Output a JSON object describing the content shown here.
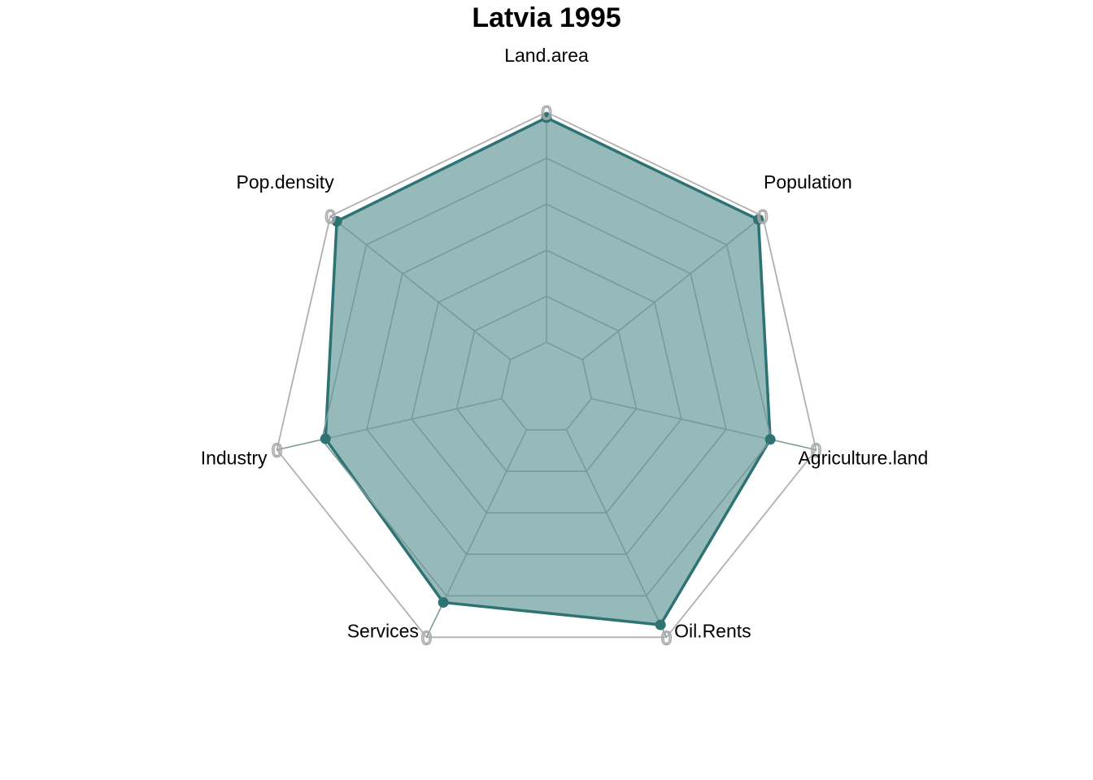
{
  "chart_data": {
    "type": "radar",
    "title": "Latvia 1995",
    "axes": [
      "Land.area",
      "Population",
      "Agriculture.land",
      "Oil.Rents",
      "Services",
      "Industry",
      "Pop.density"
    ],
    "max_labels": [
      "0",
      "0",
      "0",
      "0",
      "0",
      "0",
      "0"
    ],
    "range": [
      0,
      1
    ],
    "grid_levels": 5,
    "series": [
      {
        "values": [
          0.98,
          0.98,
          0.83,
          0.95,
          0.86,
          0.82,
          0.97
        ]
      }
    ],
    "colors": {
      "series_line": "#2e7373",
      "series_fill": "#2e7373",
      "series_fill_opacity": 0.5,
      "max_ring": "#b0b0b0",
      "grid": "#7a9a9a"
    }
  }
}
